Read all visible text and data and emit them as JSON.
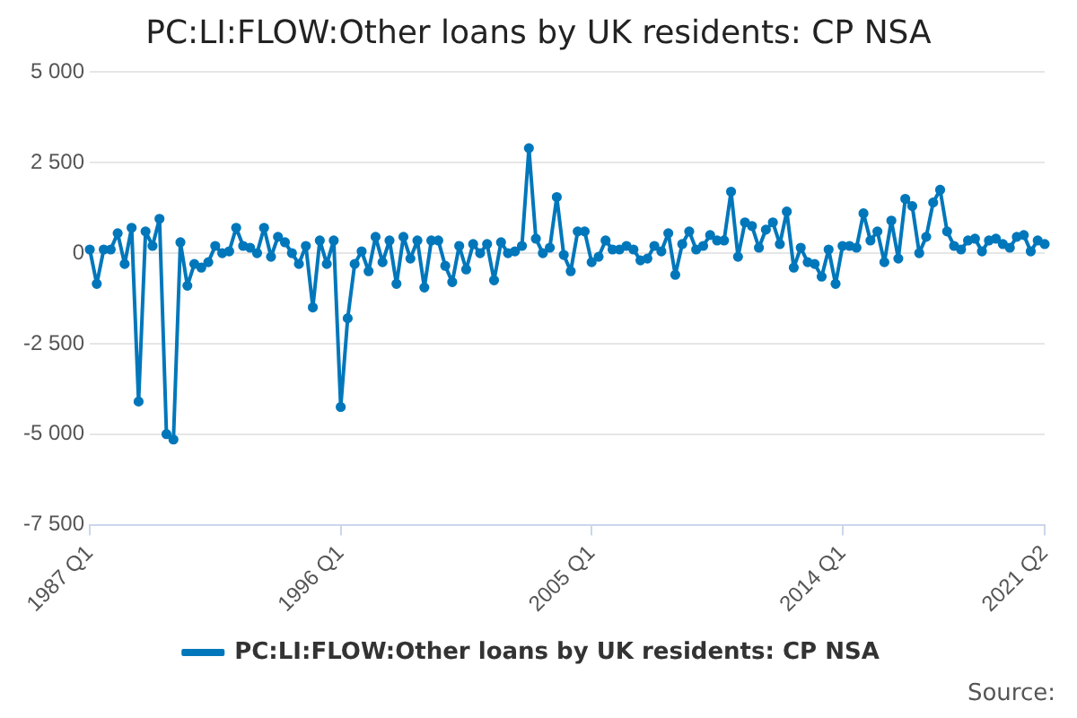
{
  "chart_data": {
    "type": "line",
    "title": "PC:LI:FLOW:Other loans by UK residents: CP NSA",
    "categories": [
      "1987 Q1",
      null,
      null,
      null,
      null,
      null,
      null,
      null,
      null,
      null,
      null,
      null,
      null,
      null,
      null,
      null,
      null,
      null,
      null,
      null,
      null,
      null,
      null,
      null,
      null,
      null,
      null,
      null,
      null,
      null,
      null,
      null,
      null,
      null,
      null,
      null,
      "1996 Q1",
      null,
      null,
      null,
      null,
      null,
      null,
      null,
      null,
      null,
      null,
      null,
      null,
      null,
      null,
      null,
      null,
      null,
      null,
      null,
      null,
      null,
      null,
      null,
      null,
      null,
      null,
      null,
      null,
      null,
      null,
      null,
      null,
      null,
      null,
      null,
      "2005 Q1",
      null,
      null,
      null,
      null,
      null,
      null,
      null,
      null,
      null,
      null,
      null,
      null,
      null,
      null,
      null,
      null,
      null,
      null,
      null,
      null,
      null,
      null,
      null,
      null,
      null,
      null,
      null,
      null,
      null,
      null,
      null,
      null,
      null,
      null,
      null,
      "2014 Q1",
      null,
      null,
      null,
      null,
      null,
      null,
      null,
      null,
      null,
      null,
      null,
      null,
      null,
      null,
      null,
      null,
      null,
      null,
      null,
      null,
      null,
      null,
      null,
      null,
      null,
      null,
      null,
      null,
      "2021 Q2"
    ],
    "series": [
      {
        "name": "PC:LI:FLOW:Other loans by UK residents: CP NSA",
        "color": "#0077bb",
        "values": [
          100,
          -850,
          100,
          100,
          550,
          -300,
          700,
          -4100,
          600,
          200,
          950,
          -5000,
          -5150,
          300,
          -900,
          -300,
          -400,
          -250,
          200,
          0,
          50,
          700,
          200,
          150,
          0,
          700,
          -100,
          450,
          300,
          0,
          -300,
          200,
          -1500,
          350,
          -300,
          350,
          -4250,
          -1800,
          -300,
          50,
          -500,
          450,
          -250,
          350,
          -850,
          450,
          -150,
          350,
          -950,
          350,
          350,
          -350,
          -800,
          200,
          -450,
          250,
          0,
          250,
          -750,
          300,
          0,
          50,
          200,
          2900,
          400,
          0,
          150,
          1550,
          -50,
          -500,
          600,
          600,
          -250,
          -100,
          350,
          100,
          100,
          200,
          100,
          -200,
          -150,
          200,
          50,
          550,
          -600,
          250,
          600,
          100,
          200,
          500,
          350,
          350,
          1700,
          -100,
          850,
          750,
          150,
          650,
          850,
          250,
          1150,
          -400,
          150,
          -250,
          -300,
          -650,
          100,
          -850,
          200,
          200,
          150,
          1100,
          350,
          600,
          -250,
          900,
          -150,
          1500,
          1300,
          0,
          450,
          1400,
          1750,
          600,
          200,
          100,
          350,
          400,
          50,
          350,
          400,
          250,
          150,
          450,
          500,
          50,
          350,
          250
        ]
      }
    ],
    "ylim": [
      -7500,
      5000
    ],
    "yticks": [
      {
        "value": -7500,
        "label": "-7 500"
      },
      {
        "value": -5000,
        "label": "-5 000"
      },
      {
        "value": -2500,
        "label": "-2 500"
      },
      0,
      {
        "value": 2500,
        "label": "2 500"
      },
      {
        "value": 5000,
        "label": "5 000"
      }
    ],
    "grid": "y",
    "legend": "bottom",
    "marker": "circle",
    "line_style": "solid",
    "annotations": [
      "Source:"
    ]
  }
}
